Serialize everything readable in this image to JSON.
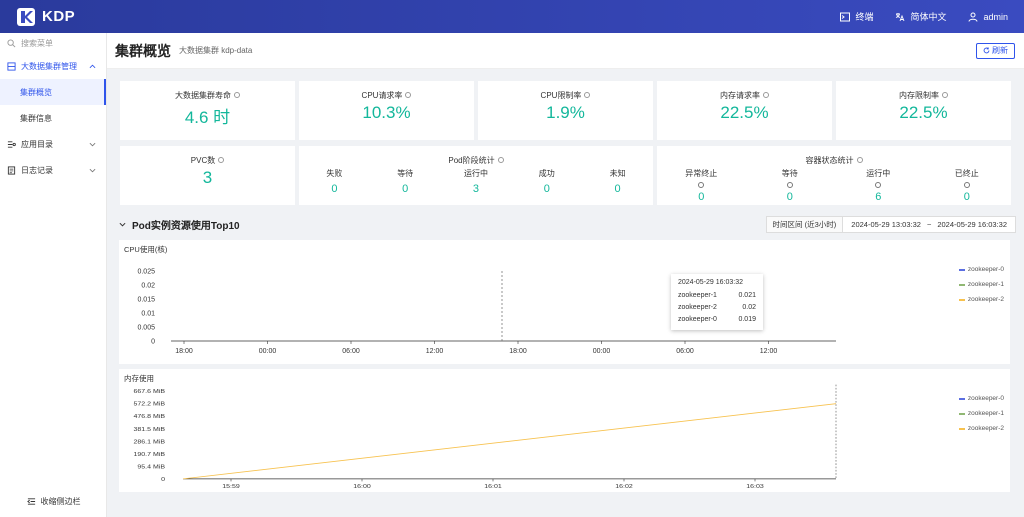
{
  "brand": {
    "name": "KDP"
  },
  "topbar": {
    "terminal": "终端",
    "language": "简体中文",
    "user": "admin"
  },
  "sidebar": {
    "search_placeholder": "搜索菜单",
    "items": [
      {
        "label": "大数据集群管理"
      },
      {
        "label": "集群概览"
      },
      {
        "label": "集群信息"
      },
      {
        "label": "应用目录"
      },
      {
        "label": "日志记录"
      }
    ],
    "collapse": "收缩侧边栏"
  },
  "header": {
    "title": "集群概览",
    "subtitle": "大数据集群 kdp-data",
    "refresh": "刷新"
  },
  "kpis": [
    {
      "title": "大数据集群寿命",
      "value": "4.6 时"
    },
    {
      "title": "CPU请求率",
      "value": "10.3%"
    },
    {
      "title": "CPU限制率",
      "value": "1.9%"
    },
    {
      "title": "内存请求率",
      "value": "22.5%"
    },
    {
      "title": "内存限制率",
      "value": "22.5%"
    }
  ],
  "pvc": {
    "title": "PVC数",
    "value": "3"
  },
  "pod_phase": {
    "title": "Pod阶段统计",
    "items": [
      {
        "label": "失败",
        "value": "0"
      },
      {
        "label": "等待",
        "value": "0"
      },
      {
        "label": "运行中",
        "value": "3"
      },
      {
        "label": "成功",
        "value": "0"
      },
      {
        "label": "未知",
        "value": "0"
      }
    ]
  },
  "container_state": {
    "title": "容器状态统计",
    "items": [
      {
        "label": "异常终止",
        "value": "0"
      },
      {
        "label": "等待",
        "value": "0"
      },
      {
        "label": "运行中",
        "value": "6"
      },
      {
        "label": "已终止",
        "value": "0"
      }
    ]
  },
  "section": {
    "title": "Pod实例资源使用Top10",
    "time_label": "时间区间 (近3小时)",
    "time_start": "2024-05-29 13:03:32",
    "time_sep": "~",
    "time_end": "2024-05-29 16:03:32"
  },
  "colors": {
    "accent": "#2f54eb",
    "value": "#13b79b",
    "zk0": "#5b6ee1",
    "zk1": "#91b874",
    "zk2": "#f7c24f"
  },
  "tooltip": {
    "time": "2024-05-29 16:03:32",
    "rows": [
      {
        "name": "zookeeper-1",
        "value": "0.021"
      },
      {
        "name": "zookeeper-2",
        "value": "0.02"
      },
      {
        "name": "zookeeper-0",
        "value": "0.019"
      }
    ]
  },
  "chart_data": [
    {
      "type": "line",
      "title": "CPU使用(核)",
      "x_ticks": [
        "18:00",
        "00:00",
        "06:00",
        "12:00",
        "18:00",
        "00:00",
        "06:00",
        "12:00"
      ],
      "y_ticks": [
        "0.025",
        "0.02",
        "0.015",
        "0.01",
        "0.005",
        "0"
      ],
      "ylim": [
        0,
        0.025
      ],
      "series": [
        {
          "name": "zookeeper-0",
          "values": []
        },
        {
          "name": "zookeeper-1",
          "values": []
        },
        {
          "name": "zookeeper-2",
          "values": []
        }
      ],
      "legend": "top-right"
    },
    {
      "type": "line",
      "title": "内存使用",
      "x_ticks": [
        "15:59",
        "16:00",
        "16:01",
        "16:02",
        "16:03"
      ],
      "y_ticks": [
        "667.6 MiB",
        "572.2 MiB",
        "476.8 MiB",
        "381.5 MiB",
        "286.1 MiB",
        "190.7 MiB",
        "95.4 MiB",
        "0"
      ],
      "ylim": [
        0,
        667.6
      ],
      "series": [
        {
          "name": "zookeeper-0",
          "values": []
        },
        {
          "name": "zookeeper-1",
          "values": []
        },
        {
          "name": "zookeeper-2",
          "start": 0,
          "end": 572.2
        }
      ],
      "legend": "top-right"
    }
  ]
}
